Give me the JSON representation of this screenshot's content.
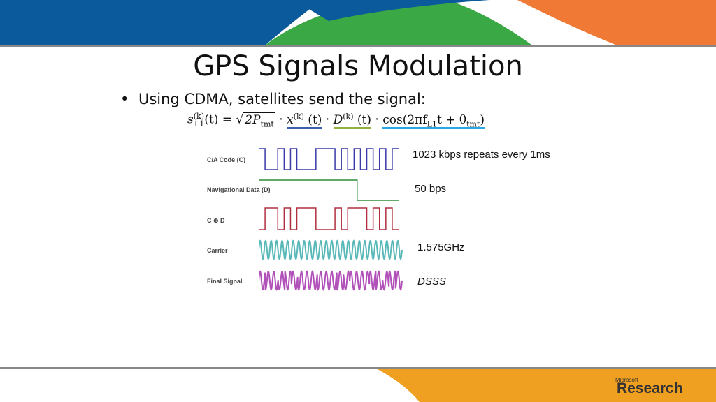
{
  "slide": {
    "title": "GPS Signals Modulation",
    "bullet": "Using CDMA, satellites send the signal:"
  },
  "formula": {
    "lhs_base": "s",
    "lhs_sup": "(k)",
    "lhs_sub": "L1",
    "lhs_arg": "(t) = ",
    "sqrt_text": "2P",
    "sqrt_sub": "tmt",
    "x_term": "x",
    "x_sup": "(k)",
    "x_arg": " (t)",
    "d_term": "D",
    "d_sup": "(k)",
    "d_arg": " (t)",
    "cos_pre": "cos(2πf",
    "cos_sub1": "L1",
    "cos_mid": "t + θ",
    "cos_sub2": "tmt",
    "cos_post": ")"
  },
  "signals": [
    {
      "label": "C/A Code (C)",
      "annotation": "1023 kbps repeats every 1ms",
      "color": "#3a3aa8"
    },
    {
      "label": "Navigational Data (D)",
      "annotation": "50 bps",
      "color": "#2e8b3a"
    },
    {
      "label": "C ⊕ D",
      "annotation": "",
      "color": "#b03040"
    },
    {
      "label": "Carrier",
      "annotation": "1.575GHz",
      "color": "#5ab8b8"
    },
    {
      "label": "Final Signal",
      "annotation": "DSSS",
      "color": "#b050b8"
    }
  ],
  "ca_code_bits": [
    1,
    0,
    0,
    1,
    0,
    1,
    0,
    0,
    0,
    1,
    1,
    1,
    0,
    1,
    0,
    1,
    0,
    1,
    0,
    1,
    0,
    1
  ],
  "nav_data_bits": [
    1,
    1,
    1,
    1,
    1,
    1,
    1,
    1,
    1,
    1,
    1,
    1,
    1,
    1,
    1,
    1,
    1,
    1,
    1,
    0,
    0,
    0,
    0,
    0,
    0,
    0,
    0
  ],
  "xor_bits": [
    0,
    1,
    1,
    0,
    1,
    0,
    1,
    1,
    1,
    0,
    0,
    0,
    1,
    0,
    1,
    1,
    1,
    0,
    1,
    0,
    1,
    0
  ],
  "colors": {
    "blue": "#0a5a9c",
    "green": "#3aa845",
    "orange": "#f07a35",
    "gold": "#f0a020"
  },
  "logo": {
    "small": "Microsoft",
    "big": "Research"
  }
}
